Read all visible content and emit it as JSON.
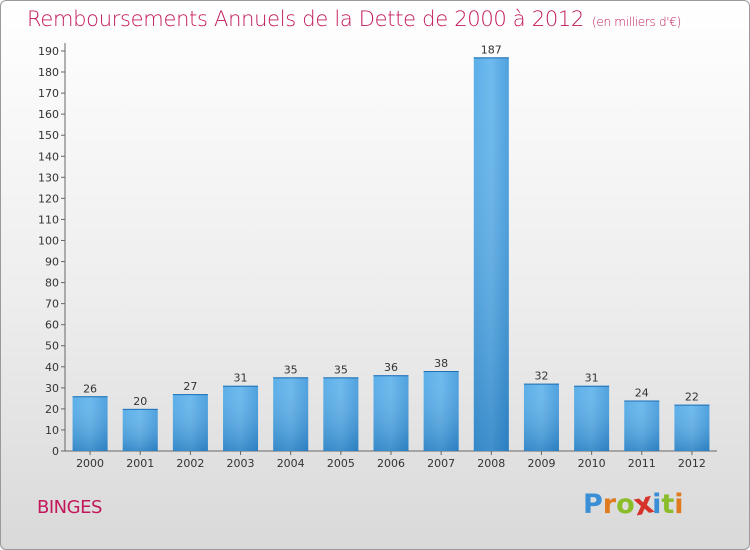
{
  "title": "Remboursements Annuels de la Dette de 2000 à 2012",
  "subtitle": "(en milliers d'€)",
  "commune": "BINGES",
  "logo": {
    "letters": [
      "P",
      "r",
      "o",
      "x",
      "i",
      "t",
      "i"
    ],
    "colors": [
      "#3a8fd6",
      "#e07a1f",
      "#8bbd2a",
      "#d6322a",
      "#3a8fd6",
      "#8bbd2a",
      "#e07a1f"
    ]
  },
  "colors": {
    "bar": "#3f9fe0",
    "bar_light": "#6ab8ef",
    "bar_dark": "#1f78c0",
    "title": "#c2185b"
  },
  "chart_data": {
    "type": "bar",
    "categories": [
      "2000",
      "2001",
      "2002",
      "2003",
      "2004",
      "2005",
      "2006",
      "2007",
      "2008",
      "2009",
      "2010",
      "2011",
      "2012"
    ],
    "values": [
      26,
      20,
      27,
      31,
      35,
      35,
      36,
      38,
      187,
      32,
      31,
      24,
      22
    ],
    "data_labels": [
      "26",
      "20",
      "27",
      "31",
      "35",
      "35",
      "36",
      "38",
      "187",
      "32",
      "31",
      "24",
      "22"
    ],
    "ylim": [
      0,
      190
    ],
    "yticks": [
      "0",
      "10",
      "20",
      "30",
      "40",
      "50",
      "60",
      "70",
      "80",
      "90",
      "100",
      "110",
      "120",
      "130",
      "140",
      "150",
      "160",
      "170",
      "180",
      "190"
    ],
    "grid": false,
    "legend": "none"
  }
}
